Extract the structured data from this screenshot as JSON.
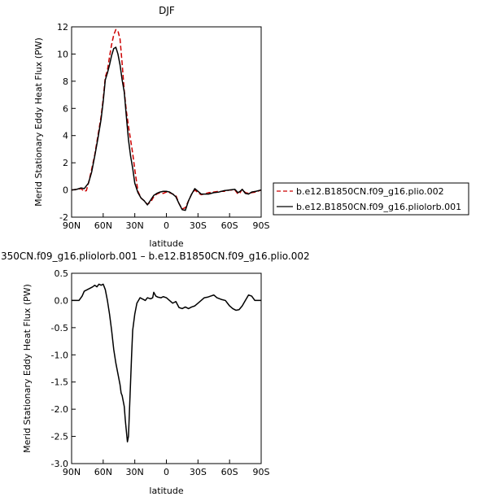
{
  "chart_data": [
    {
      "type": "line",
      "title": "DJF",
      "xlabel": "latitude",
      "ylabel": "Merid Stationary Eddy Heat Flux (PW)",
      "xlim": [
        90,
        -90
      ],
      "ylim": [
        -2,
        12
      ],
      "x_ticks": [
        90,
        60,
        30,
        0,
        -30,
        -60,
        -90
      ],
      "x_tick_labels": [
        "90N",
        "60N",
        "30N",
        "0",
        "30S",
        "60S",
        "90S"
      ],
      "y_ticks": [
        -2,
        0,
        2,
        4,
        6,
        8,
        10,
        12
      ],
      "y_tick_labels": [
        "-2",
        "0",
        "2",
        "4",
        "6",
        "8",
        "10",
        "12"
      ],
      "legend_position": "right",
      "series": [
        {
          "name": "b.e12.B1850CN.f09_g16.plio.002",
          "color": "#cc0000",
          "style": "dashed",
          "x": [
            90,
            85,
            81,
            78,
            76,
            74,
            71,
            68,
            65,
            62,
            60,
            58,
            56,
            54,
            52,
            50,
            48,
            46,
            44,
            42,
            40,
            38,
            36,
            34,
            32,
            30,
            27,
            24,
            21,
            18,
            15,
            12,
            9,
            6,
            3,
            0,
            -3,
            -6,
            -9,
            -12,
            -15,
            -18,
            -21,
            -24,
            -27,
            -30,
            -33,
            -36,
            -40,
            -45,
            -50,
            -55,
            -60,
            -65,
            -68,
            -70,
            -72,
            -75,
            -78,
            -81,
            -85,
            -90
          ],
          "y": [
            0.0,
            0.05,
            0.1,
            -0.1,
            -0.05,
            0.5,
            1.5,
            2.6,
            4.0,
            5.4,
            6.7,
            8.3,
            8.8,
            9.8,
            10.7,
            11.4,
            11.8,
            11.7,
            11.1,
            9.3,
            7.3,
            5.8,
            4.7,
            3.7,
            2.7,
            1.5,
            -0.1,
            -0.6,
            -0.8,
            -1.05,
            -0.9,
            -0.5,
            -0.3,
            -0.2,
            -0.25,
            -0.15,
            -0.2,
            -0.3,
            -0.4,
            -1.0,
            -1.4,
            -1.3,
            -0.8,
            -0.3,
            0.0,
            -0.2,
            -0.35,
            -0.3,
            -0.2,
            -0.15,
            -0.1,
            -0.1,
            0.0,
            0.0,
            -0.3,
            -0.2,
            0.05,
            -0.2,
            -0.25,
            -0.2,
            -0.15,
            0.0
          ]
        },
        {
          "name": "b.e12.B1850CN.f09_g16.pliolorb.001",
          "color": "#000000",
          "style": "solid",
          "x": [
            90,
            85,
            81,
            78,
            76,
            74,
            71,
            68,
            65,
            62,
            60,
            58,
            56,
            54,
            52,
            50,
            48,
            46,
            44,
            42,
            40,
            38,
            36,
            34,
            32,
            30,
            27,
            24,
            21,
            18,
            15,
            12,
            9,
            6,
            3,
            0,
            -3,
            -6,
            -9,
            -12,
            -15,
            -18,
            -21,
            -24,
            -27,
            -30,
            -33,
            -36,
            -40,
            -45,
            -50,
            -55,
            -60,
            -65,
            -68,
            -70,
            -72,
            -75,
            -78,
            -81,
            -85,
            -90
          ],
          "y": [
            0.0,
            0.05,
            0.15,
            0.1,
            0.3,
            0.5,
            1.3,
            2.5,
            3.8,
            5.2,
            6.5,
            8.1,
            8.6,
            9.2,
            9.9,
            10.4,
            10.5,
            10.0,
            9.2,
            8.1,
            7.2,
            5.4,
            3.7,
            2.5,
            1.6,
            0.5,
            -0.2,
            -0.6,
            -0.8,
            -1.1,
            -0.75,
            -0.4,
            -0.25,
            -0.15,
            -0.1,
            -0.1,
            -0.15,
            -0.3,
            -0.5,
            -1.0,
            -1.45,
            -1.5,
            -0.8,
            -0.3,
            0.1,
            -0.1,
            -0.3,
            -0.3,
            -0.3,
            -0.2,
            -0.15,
            -0.05,
            0.0,
            0.05,
            -0.2,
            -0.1,
            0.05,
            -0.25,
            -0.3,
            -0.15,
            -0.1,
            0.0
          ]
        }
      ]
    },
    {
      "type": "line",
      "title": "350CN.f09_g16.pliolorb.001 – b.e12.B1850CN.f09_g16.plio.002",
      "xlabel": "latitude",
      "ylabel": "Merid Stationary Eddy Heat Flux (PW)",
      "xlim": [
        90,
        -90
      ],
      "ylim": [
        -3.0,
        0.5
      ],
      "x_ticks": [
        90,
        60,
        30,
        0,
        -30,
        -60,
        -90
      ],
      "x_tick_labels": [
        "90N",
        "60N",
        "30N",
        "0",
        "30S",
        "60S",
        "90S"
      ],
      "y_ticks": [
        -3.0,
        -2.5,
        -2.0,
        -1.5,
        -1.0,
        -0.5,
        0.0,
        0.5
      ],
      "y_tick_labels": [
        "-3.0",
        "-2.5",
        "-2.0",
        "-1.5",
        "-1.0",
        "-0.5",
        "0.0",
        "0.5"
      ],
      "series": [
        {
          "color": "#000000",
          "style": "solid",
          "x": [
            90,
            83,
            80,
            78,
            75,
            72,
            70,
            68,
            66,
            64,
            62,
            60,
            58,
            56,
            54,
            52,
            50,
            48,
            46,
            45,
            44,
            43,
            42,
            41,
            40,
            39,
            38,
            37,
            36,
            35,
            34,
            33,
            32,
            30,
            28,
            25,
            22,
            20,
            18,
            15,
            13,
            12,
            10,
            8,
            5,
            3,
            0,
            -3,
            -6,
            -9,
            -12,
            -15,
            -18,
            -21,
            -24,
            -27,
            -30,
            -33,
            -36,
            -39,
            -42,
            -45,
            -48,
            -52,
            -56,
            -58,
            -60,
            -63,
            -66,
            -69,
            -72,
            -75,
            -78,
            -81,
            -84,
            -87,
            -90
          ],
          "y": [
            0.0,
            0.0,
            0.08,
            0.17,
            0.2,
            0.23,
            0.25,
            0.28,
            0.25,
            0.3,
            0.28,
            0.3,
            0.2,
            0.0,
            -0.25,
            -0.55,
            -0.9,
            -1.15,
            -1.35,
            -1.45,
            -1.55,
            -1.7,
            -1.75,
            -1.85,
            -1.95,
            -2.2,
            -2.4,
            -2.6,
            -2.5,
            -2.0,
            -1.5,
            -1.0,
            -0.55,
            -0.25,
            -0.05,
            0.05,
            0.02,
            0.0,
            0.05,
            0.03,
            0.05,
            0.15,
            0.08,
            0.06,
            0.05,
            0.07,
            0.05,
            0.0,
            -0.05,
            -0.02,
            -0.13,
            -0.15,
            -0.12,
            -0.15,
            -0.12,
            -0.1,
            -0.05,
            0.0,
            0.05,
            0.06,
            0.08,
            0.1,
            0.05,
            0.02,
            0.0,
            -0.05,
            -0.1,
            -0.15,
            -0.18,
            -0.17,
            -0.1,
            0.0,
            0.1,
            0.08,
            0.0,
            0.0,
            0.0
          ]
        }
      ]
    }
  ]
}
